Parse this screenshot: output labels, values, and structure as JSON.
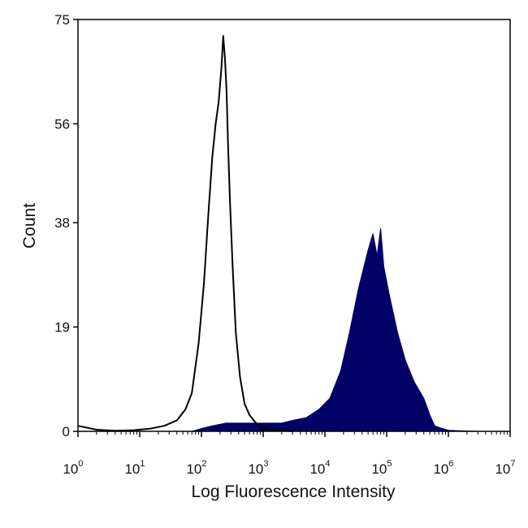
{
  "chart_data": {
    "type": "area",
    "xlabel": "Log Fluorescence Intensity",
    "ylabel": "Count",
    "xscale": "log",
    "xlim": [
      1,
      10000000
    ],
    "ylim": [
      0,
      75
    ],
    "x_ticks": [
      {
        "base": "10",
        "exp": "0"
      },
      {
        "base": "10",
        "exp": "1"
      },
      {
        "base": "10",
        "exp": "2"
      },
      {
        "base": "10",
        "exp": "3"
      },
      {
        "base": "10",
        "exp": "4"
      },
      {
        "base": "10",
        "exp": "5"
      },
      {
        "base": "10",
        "exp": "6"
      },
      {
        "base": "10",
        "exp": "7"
      }
    ],
    "y_ticks": [
      "0",
      "19",
      "38",
      "56",
      "75"
    ],
    "grid": false,
    "legend": "none",
    "series": [
      {
        "style": "outline",
        "color": "#000000",
        "x": [
          1,
          2,
          4,
          8,
          15,
          25,
          40,
          55,
          70,
          90,
          110,
          130,
          150,
          170,
          190,
          210,
          225,
          240,
          255,
          270,
          290,
          320,
          360,
          420,
          500,
          600,
          700,
          850,
          1000,
          1500,
          3000
        ],
        "y": [
          1,
          0.3,
          0.1,
          0.2,
          0.5,
          1,
          2,
          4,
          7,
          16,
          27,
          40,
          50,
          56,
          60,
          66,
          72,
          68,
          62,
          52,
          42,
          30,
          18,
          10,
          5,
          3,
          2,
          1,
          0.5,
          0.2,
          0
        ]
      },
      {
        "style": "filled",
        "color": "#000066",
        "x": [
          70,
          100,
          150,
          250,
          400,
          700,
          1000,
          2000,
          3000,
          5000,
          8000,
          12000,
          18000,
          25000,
          35000,
          50000,
          60000,
          70000,
          80000,
          90000,
          110000,
          150000,
          200000,
          280000,
          400000,
          500000,
          600000,
          800000,
          1000000,
          1500000,
          3000000
        ],
        "y": [
          0,
          0.5,
          1,
          1.5,
          1.5,
          1.5,
          1.5,
          1.5,
          2,
          2.5,
          4,
          6,
          11,
          18,
          26,
          33,
          36,
          32,
          37,
          30,
          25,
          18,
          13,
          9,
          6,
          3,
          1,
          0.5,
          0.2,
          0.1,
          0
        ]
      }
    ]
  }
}
